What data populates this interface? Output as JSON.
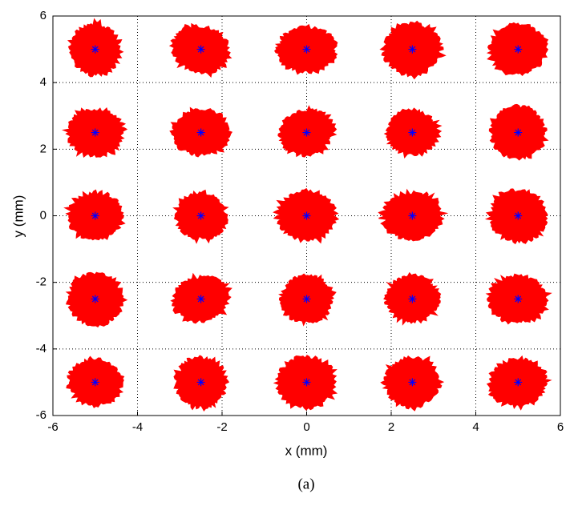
{
  "chart_data": {
    "type": "scatter",
    "xlabel": "x (mm)",
    "ylabel": "y (mm)",
    "caption": "(a)",
    "xlim": [
      -6,
      6
    ],
    "ylim": [
      -6,
      6
    ],
    "xticks": [
      -6,
      -4,
      -2,
      0,
      2,
      4,
      6
    ],
    "yticks": [
      -6,
      -4,
      -2,
      0,
      2,
      4,
      6
    ],
    "grid": true,
    "series": [
      {
        "color": "#ff0000",
        "marker": "cloud",
        "x": [
          -5,
          -2.5,
          0,
          2.5,
          5,
          -5,
          -2.5,
          0,
          2.5,
          5,
          -5,
          -2.5,
          0,
          2.5,
          5,
          -5,
          -2.5,
          0,
          2.5,
          5,
          -5,
          -2.5,
          0,
          2.5,
          5
        ],
        "y": [
          5,
          5,
          5,
          5,
          5,
          2.5,
          2.5,
          2.5,
          2.5,
          2.5,
          0,
          0,
          0,
          0,
          0,
          -2.5,
          -2.5,
          -2.5,
          -2.5,
          -2.5,
          -5,
          -5,
          -5,
          -5,
          -5
        ]
      },
      {
        "color": "#0000ff",
        "marker": "star",
        "x": [
          -5,
          -2.5,
          0,
          2.5,
          5,
          -5,
          -2.5,
          0,
          2.5,
          5,
          -5,
          -2.5,
          0,
          2.5,
          5,
          -5,
          -2.5,
          0,
          2.5,
          5,
          -5,
          -2.5,
          0,
          2.5,
          5
        ],
        "y": [
          5,
          5,
          5,
          5,
          5,
          2.5,
          2.5,
          2.5,
          2.5,
          2.5,
          0,
          0,
          0,
          0,
          0,
          -2.5,
          -2.5,
          -2.5,
          -2.5,
          -2.5,
          -5,
          -5,
          -5,
          -5,
          -5
        ]
      }
    ]
  }
}
